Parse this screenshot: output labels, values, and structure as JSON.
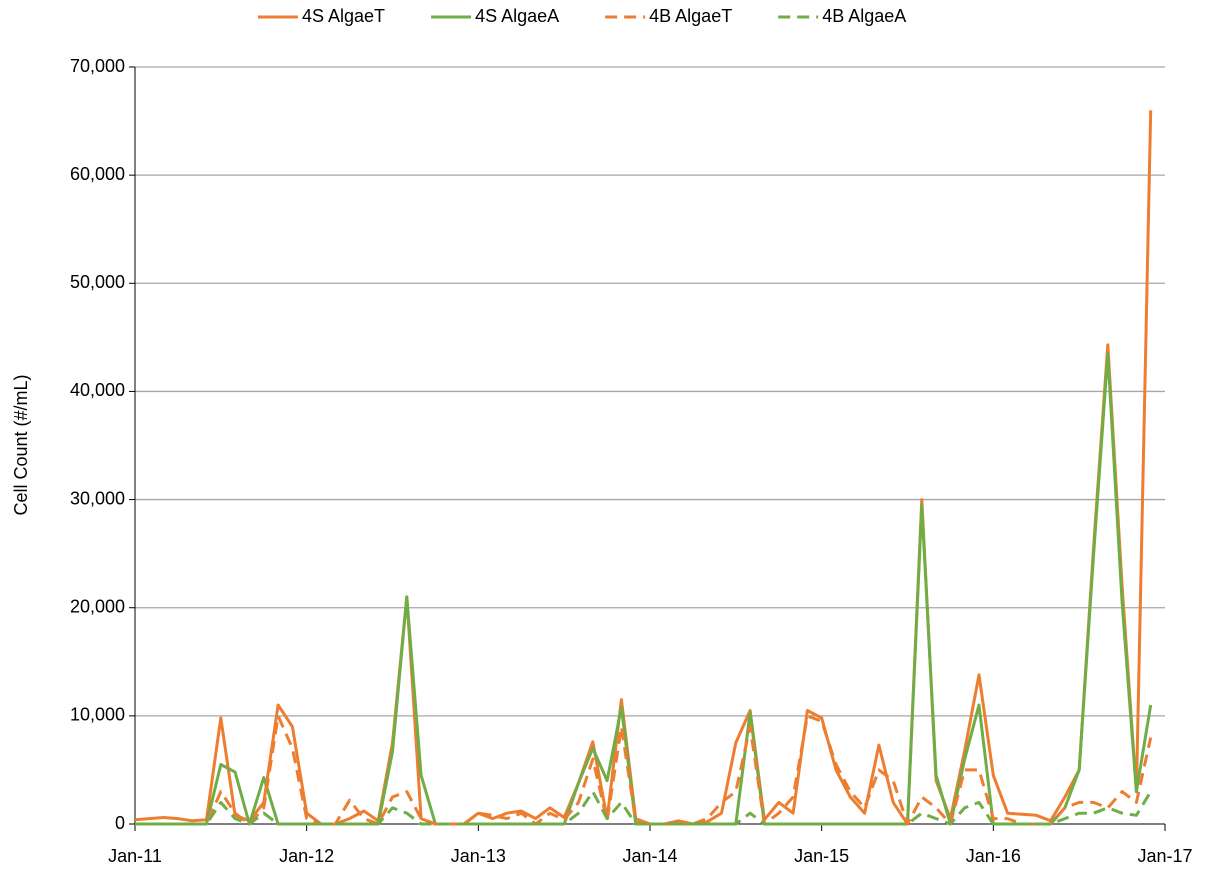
{
  "chart_data": {
    "type": "line",
    "y_label": "Cell Count (#/mL)",
    "x": [
      "2011-01",
      "2011-02",
      "2011-03",
      "2011-04",
      "2011-05",
      "2011-06",
      "2011-07",
      "2011-08",
      "2011-09",
      "2011-10",
      "2011-11",
      "2011-12",
      "2012-01",
      "2012-02",
      "2012-03",
      "2012-04",
      "2012-05",
      "2012-06",
      "2012-07",
      "2012-08",
      "2012-09",
      "2012-10",
      "2012-11",
      "2012-12",
      "2013-01",
      "2013-02",
      "2013-03",
      "2013-04",
      "2013-05",
      "2013-06",
      "2013-07",
      "2013-08",
      "2013-09",
      "2013-10",
      "2013-11",
      "2013-12",
      "2014-01",
      "2014-02",
      "2014-03",
      "2014-04",
      "2014-05",
      "2014-06",
      "2014-07",
      "2014-08",
      "2014-09",
      "2014-10",
      "2014-11",
      "2014-12",
      "2015-01",
      "2015-02",
      "2015-03",
      "2015-04",
      "2015-05",
      "2015-06",
      "2015-07",
      "2015-08",
      "2015-09",
      "2015-10",
      "2015-11",
      "2015-12",
      "2016-01",
      "2016-02",
      "2016-03",
      "2016-04",
      "2016-05",
      "2016-06",
      "2016-07",
      "2016-08",
      "2016-09",
      "2016-10",
      "2016-11",
      "2016-12"
    ],
    "series": [
      {
        "name": "4S AlgaeT",
        "color": "#ED7D31",
        "dash": false,
        "values": [
          400,
          500,
          600,
          500,
          300,
          400,
          9800,
          800,
          300,
          2000,
          11000,
          9000,
          1000,
          0,
          0,
          500,
          1200,
          300,
          7500,
          21000,
          500,
          0,
          0,
          0,
          1000,
          500,
          1000,
          1200,
          500,
          1500,
          600,
          3800,
          7600,
          500,
          11500,
          500,
          0,
          0,
          300,
          0,
          200,
          1000,
          7500,
          10500,
          400,
          2000,
          1000,
          10500,
          9800,
          5000,
          2500,
          1000,
          7300,
          2000,
          0,
          30000,
          4000,
          500,
          6800,
          13800,
          4500,
          1000,
          900,
          800,
          300,
          2500,
          5000,
          25500,
          44300,
          22000,
          3000,
          66000
        ]
      },
      {
        "name": "4S AlgaeA",
        "color": "#70AD47",
        "dash": false,
        "values": [
          0,
          0,
          0,
          0,
          0,
          0,
          5500,
          4800,
          0,
          4300,
          0,
          0,
          0,
          0,
          0,
          0,
          0,
          0,
          6700,
          21000,
          4500,
          0,
          0,
          0,
          0,
          0,
          0,
          0,
          0,
          0,
          0,
          3800,
          7000,
          4000,
          10800,
          0,
          0,
          0,
          0,
          0,
          0,
          0,
          0,
          10300,
          0,
          0,
          0,
          0,
          0,
          0,
          0,
          0,
          0,
          0,
          0,
          29500,
          4500,
          0,
          6000,
          11000,
          0,
          0,
          0,
          0,
          0,
          1500,
          5000,
          24800,
          43500,
          20500,
          3000,
          11000
        ]
      },
      {
        "name": "4B AlgaeT",
        "color": "#ED7D31",
        "dash": true,
        "values": [
          0,
          0,
          0,
          0,
          0,
          0,
          3000,
          1000,
          0,
          1500,
          10000,
          7000,
          500,
          0,
          0,
          2200,
          500,
          0,
          2500,
          3000,
          500,
          0,
          0,
          0,
          1000,
          800,
          500,
          1000,
          0,
          1000,
          400,
          2000,
          6000,
          300,
          9000,
          300,
          0,
          0,
          0,
          0,
          500,
          2000,
          3000,
          9000,
          0,
          1000,
          2500,
          10000,
          9500,
          5500,
          3000,
          1500,
          5000,
          4000,
          0,
          2500,
          1500,
          0,
          5000,
          5000,
          500,
          500,
          0,
          0,
          0,
          1500,
          2000,
          2000,
          1500,
          3000,
          2000,
          8000
        ]
      },
      {
        "name": "4B AlgaeA",
        "color": "#70AD47",
        "dash": true,
        "values": [
          0,
          0,
          0,
          0,
          0,
          0,
          2000,
          500,
          0,
          1000,
          0,
          0,
          0,
          0,
          0,
          0,
          0,
          0,
          1500,
          1000,
          0,
          0,
          0,
          0,
          0,
          0,
          0,
          0,
          0,
          0,
          0,
          1000,
          3000,
          500,
          2000,
          0,
          0,
          0,
          0,
          0,
          0,
          0,
          0,
          1000,
          0,
          0,
          0,
          0,
          0,
          0,
          0,
          0,
          0,
          0,
          0,
          1000,
          500,
          0,
          1500,
          2000,
          0,
          0,
          0,
          0,
          0,
          500,
          1000,
          1000,
          1500,
          1000,
          800,
          3000
        ]
      }
    ],
    "xlim": [
      "2011-01",
      "2017-01"
    ],
    "xticks": [
      {
        "value": "2011-01",
        "label": "Jan-11"
      },
      {
        "value": "2012-01",
        "label": "Jan-12"
      },
      {
        "value": "2013-01",
        "label": "Jan-13"
      },
      {
        "value": "2014-01",
        "label": "Jan-14"
      },
      {
        "value": "2015-01",
        "label": "Jan-15"
      },
      {
        "value": "2016-01",
        "label": "Jan-16"
      },
      {
        "value": "2017-01",
        "label": "Jan-17"
      }
    ],
    "ylim": [
      0,
      70000
    ],
    "yticks": [
      0,
      {
        "value": 10000,
        "label": "10,000"
      },
      {
        "value": 20000,
        "label": "20,000"
      },
      {
        "value": 30000,
        "label": "30,000"
      },
      {
        "value": 40000,
        "label": "40,000"
      },
      {
        "value": 50000,
        "label": "50,000"
      },
      {
        "value": 60000,
        "label": "60,000"
      },
      {
        "value": 70000,
        "label": "70,000"
      }
    ],
    "grid": true,
    "legend": "top"
  }
}
